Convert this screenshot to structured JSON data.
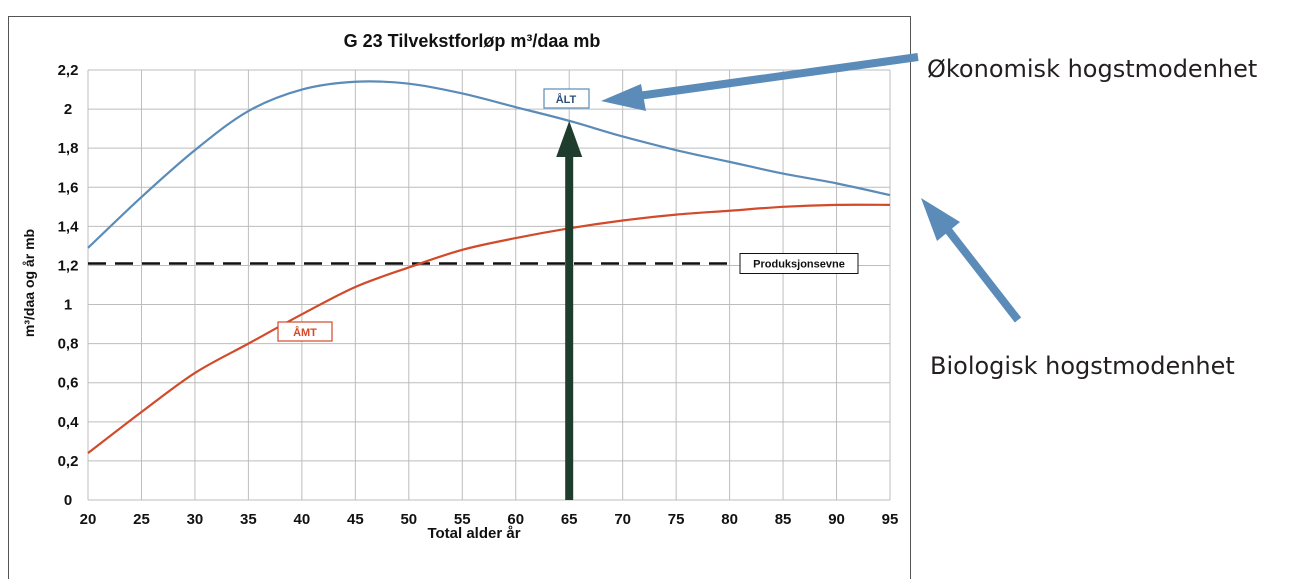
{
  "chart_data": {
    "type": "line",
    "title": "G 23 Tilvekstforløp m³/daa mb",
    "xlabel": "Total alder år",
    "ylabel": "m³/daa og år mb",
    "x_ticks": [
      20,
      25,
      30,
      35,
      40,
      45,
      50,
      55,
      60,
      65,
      70,
      75,
      80,
      85,
      90,
      95
    ],
    "y_ticks": [
      "0",
      "0,2",
      "0,4",
      "0,6",
      "0,8",
      "1",
      "1,2",
      "1,4",
      "1,6",
      "1,8",
      "2",
      "2,2"
    ],
    "y_tick_values": [
      0,
      0.2,
      0.4,
      0.6,
      0.8,
      1.0,
      1.2,
      1.4,
      1.6,
      1.8,
      2.0,
      2.2
    ],
    "xlim": [
      20,
      95
    ],
    "ylim": [
      0,
      2.2
    ],
    "grid": true,
    "series": [
      {
        "name": "ÅLT",
        "color": "#5b8bb8",
        "x": [
          20,
          25,
          30,
          35,
          40,
          45,
          50,
          55,
          60,
          65,
          70,
          75,
          80,
          85,
          90,
          95
        ],
        "y": [
          1.29,
          1.55,
          1.79,
          1.99,
          2.1,
          2.14,
          2.13,
          2.08,
          2.01,
          1.94,
          1.86,
          1.79,
          1.73,
          1.67,
          1.62,
          1.56
        ]
      },
      {
        "name": "ÅMT",
        "color": "#d24a2a",
        "x": [
          20,
          25,
          30,
          35,
          40,
          45,
          50,
          55,
          60,
          65,
          70,
          75,
          80,
          85,
          90,
          95
        ],
        "y": [
          0.24,
          0.45,
          0.65,
          0.8,
          0.95,
          1.09,
          1.19,
          1.28,
          1.34,
          1.39,
          1.43,
          1.46,
          1.48,
          1.5,
          1.51,
          1.51
        ]
      }
    ],
    "reference_line": {
      "label": "Produksjonsevne",
      "y": 1.21,
      "x_end": 80
    },
    "vertical_arrow_x": 65
  },
  "annotations": {
    "economic": "Økonomisk hogstmodenhet",
    "biological": "Biologisk hogstmodenhet"
  },
  "colors": {
    "arrow_blue": "#5b8bb8",
    "arrow_green": "#1f3d2c",
    "grid": "#bdbdbd",
    "frame": "#555555"
  }
}
